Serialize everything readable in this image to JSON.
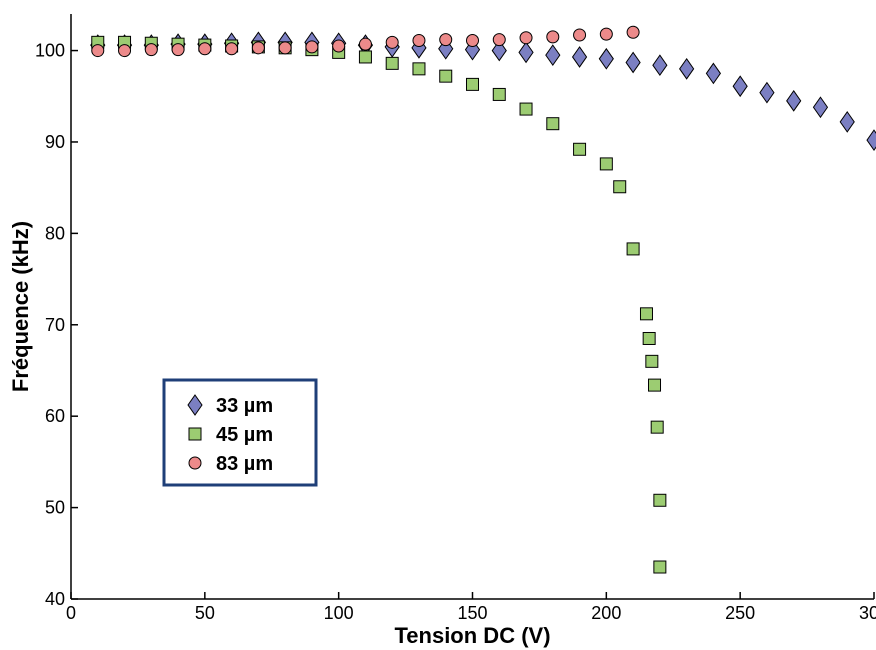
{
  "chart_data": {
    "type": "scatter",
    "title": "",
    "xlabel": "Tension DC (V)",
    "ylabel": "Fréquence (kHz)",
    "xlim": [
      0,
      300
    ],
    "ylim": [
      40,
      104
    ],
    "xticks": [
      0,
      50,
      100,
      150,
      200,
      250,
      300
    ],
    "yticks": [
      40,
      50,
      60,
      70,
      80,
      90,
      100
    ],
    "grid": false,
    "legend_position": "lower-left",
    "series": [
      {
        "name": "33 µm",
        "marker": "diamond",
        "color": "#7B7FC2",
        "x": [
          10,
          20,
          30,
          40,
          50,
          60,
          70,
          80,
          90,
          100,
          110,
          120,
          130,
          140,
          150,
          160,
          170,
          180,
          190,
          200,
          210,
          220,
          230,
          240,
          250,
          260,
          270,
          280,
          290,
          300
        ],
        "y": [
          100.6,
          100.6,
          100.6,
          100.7,
          100.7,
          100.8,
          100.9,
          100.9,
          100.9,
          100.8,
          100.6,
          100.4,
          100.3,
          100.2,
          100.1,
          100.0,
          99.8,
          99.5,
          99.3,
          99.1,
          98.7,
          98.4,
          98.0,
          97.5,
          96.1,
          95.4,
          94.5,
          93.8,
          92.2,
          90.2
        ]
      },
      {
        "name": "45 µm",
        "marker": "square",
        "color": "#9CCC72",
        "x": [
          10,
          20,
          30,
          40,
          50,
          60,
          70,
          80,
          90,
          100,
          110,
          120,
          130,
          140,
          150,
          160,
          170,
          180,
          190,
          200,
          205,
          210,
          215,
          216,
          217,
          218,
          219,
          220,
          220
        ],
        "y": [
          100.9,
          100.9,
          100.8,
          100.7,
          100.6,
          100.5,
          100.4,
          100.3,
          100.1,
          99.8,
          99.3,
          98.6,
          98.0,
          97.2,
          96.3,
          95.2,
          93.6,
          92.0,
          89.2,
          87.6,
          85.1,
          78.3,
          71.2,
          68.5,
          66.0,
          63.4,
          58.8,
          50.8,
          43.5
        ]
      },
      {
        "name": "83 µm",
        "marker": "circle",
        "color": "#EC8A8A",
        "x": [
          10,
          20,
          30,
          40,
          50,
          60,
          70,
          80,
          90,
          100,
          110,
          120,
          130,
          140,
          150,
          160,
          170,
          180,
          190,
          200,
          210
        ],
        "y": [
          100.0,
          100.0,
          100.1,
          100.1,
          100.2,
          100.2,
          100.3,
          100.3,
          100.4,
          100.5,
          100.7,
          100.9,
          101.1,
          101.2,
          101.1,
          101.2,
          101.4,
          101.5,
          101.7,
          101.8,
          102.0
        ]
      }
    ]
  }
}
